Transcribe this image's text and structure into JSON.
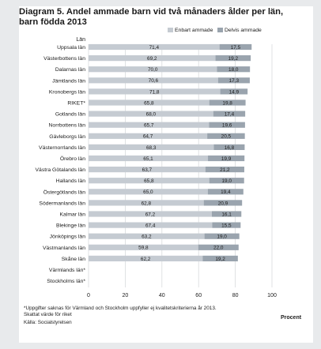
{
  "title": "Diagram 5. Andel ammade barn vid två månaders ålder per län, barn födda 2013",
  "footnote_1": "*Uppgifter saknas för Värmland och Stockholm uppfyller ej kvalitetskriterierna år 2013.",
  "footnote_2": "Skattat värde för riket",
  "source": "Källa: Socialstyrelsen",
  "colors": {
    "enbart": "#c5cbd2",
    "delvis": "#9aa4ae",
    "label_text": "#1a1a1a",
    "grid": "#d8dadd",
    "frame": "#e8eaec"
  },
  "chart_data": {
    "type": "bar",
    "orientation": "horizontal",
    "stacked": true,
    "category_axis_label": "Län",
    "xunit": "Procent",
    "xlim": [
      0,
      100
    ],
    "xticks": [
      "0",
      "20",
      "40",
      "60",
      "80",
      "100"
    ],
    "grid": true,
    "legend_position": "top-right",
    "categories": [
      "Uppsala län",
      "Västerbottens län",
      "Dalarnas län",
      "Jämtlands län",
      "Kronobergs län",
      "RIKET*",
      "Gotlands län",
      "Norrbottens län",
      "Gävleborgs län",
      "Västernorrlands län",
      "Örebro län",
      "Västra Götalands län",
      "Hallands län",
      "Östergötlands län",
      "Södermanlands län",
      "Kalmar län",
      "Blekinge län",
      "Jönköpings län",
      "Västmanlands län",
      "Skåne län",
      "Värmlands län*",
      "Stockholms län*"
    ],
    "series": [
      {
        "name": "Enbart ammade",
        "values": [
          71.4,
          69.2,
          70.0,
          70.6,
          71.8,
          65.8,
          68.0,
          65.7,
          64.7,
          68.3,
          65.1,
          63.7,
          65.8,
          65.0,
          62.8,
          67.2,
          67.4,
          63.2,
          59.8,
          62.2,
          null,
          null
        ],
        "labels": [
          "71,4",
          "69,2",
          "70,0",
          "70,6",
          "71,8",
          "65,8",
          "68,0",
          "65,7",
          "64,7",
          "68,3",
          "65,1",
          "63,7",
          "65,8",
          "65,0",
          "62,8",
          "67,2",
          "67,4",
          "63,2",
          "59,8",
          "62,2",
          "",
          ""
        ]
      },
      {
        "name": "Delvis ammade",
        "values": [
          17.5,
          19.2,
          18.0,
          17.3,
          14.9,
          19.8,
          17.4,
          19.6,
          20.5,
          16.8,
          19.9,
          21.2,
          19.0,
          19.4,
          20.9,
          16.1,
          15.5,
          19.0,
          22.0,
          19.2,
          null,
          null
        ],
        "labels": [
          "17,5",
          "19,2",
          "18,0",
          "17,3",
          "14,9",
          "19,8",
          "17,4",
          "19,6",
          "20,5",
          "16,8",
          "19,9",
          "21,2",
          "19,0",
          "19,4",
          "20,9",
          "16,1",
          "15,5",
          "19,0",
          "22,0",
          "19,2",
          "",
          ""
        ]
      }
    ]
  }
}
